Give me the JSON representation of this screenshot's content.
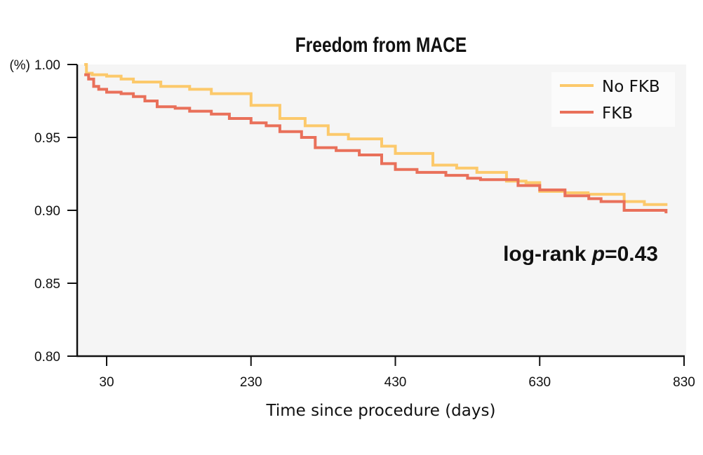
{
  "chart_data": {
    "type": "line",
    "title": "Freedom from MACE",
    "xlabel": "Time since procedure (days)",
    "ylabel": "(%)",
    "xlim": [
      -11,
      830
    ],
    "ylim": [
      0.8,
      1.0
    ],
    "xticks": [
      30,
      230,
      430,
      630,
      830
    ],
    "xtick_labels": [
      "30",
      "230",
      "430",
      "630",
      "830"
    ],
    "yticks": [
      0.8,
      0.85,
      0.9,
      0.95,
      1.0
    ],
    "ytick_labels": [
      "0.80",
      "0.85",
      "0.90",
      "0.95",
      "1.00"
    ],
    "y_axis_unit_label": "(%)",
    "grid": false,
    "step": true,
    "legend_position": "top-right",
    "annotation": {
      "prefix": "log-rank ",
      "italic": "p",
      "suffix": "=0.43"
    },
    "series": [
      {
        "name": "No FKB",
        "color": "#fcc96b",
        "x": [
          -1,
          2,
          10,
          30,
          50,
          67,
          105,
          145,
          175,
          230,
          270,
          305,
          337,
          365,
          411,
          430,
          482,
          515,
          543,
          584,
          611,
          630,
          665,
          697,
          747,
          775,
          805
        ],
        "y": [
          1.0,
          0.994,
          0.993,
          0.992,
          0.99,
          0.988,
          0.985,
          0.983,
          0.98,
          0.972,
          0.963,
          0.958,
          0.952,
          0.949,
          0.944,
          0.939,
          0.931,
          0.929,
          0.926,
          0.92,
          0.919,
          0.913,
          0.912,
          0.911,
          0.906,
          0.904,
          0.903
        ]
      },
      {
        "name": "FKB",
        "color": "#e9705a",
        "x": [
          -1,
          5,
          12,
          19,
          30,
          50,
          67,
          83,
          100,
          125,
          145,
          175,
          200,
          230,
          251,
          270,
          300,
          319,
          348,
          380,
          411,
          430,
          460,
          500,
          530,
          548,
          600,
          630,
          665,
          698,
          715,
          747,
          805
        ],
        "y": [
          0.993,
          0.99,
          0.985,
          0.983,
          0.981,
          0.98,
          0.978,
          0.975,
          0.971,
          0.97,
          0.968,
          0.966,
          0.963,
          0.96,
          0.958,
          0.954,
          0.95,
          0.943,
          0.941,
          0.938,
          0.932,
          0.928,
          0.926,
          0.924,
          0.922,
          0.921,
          0.917,
          0.914,
          0.91,
          0.908,
          0.906,
          0.9,
          0.898
        ]
      }
    ]
  }
}
